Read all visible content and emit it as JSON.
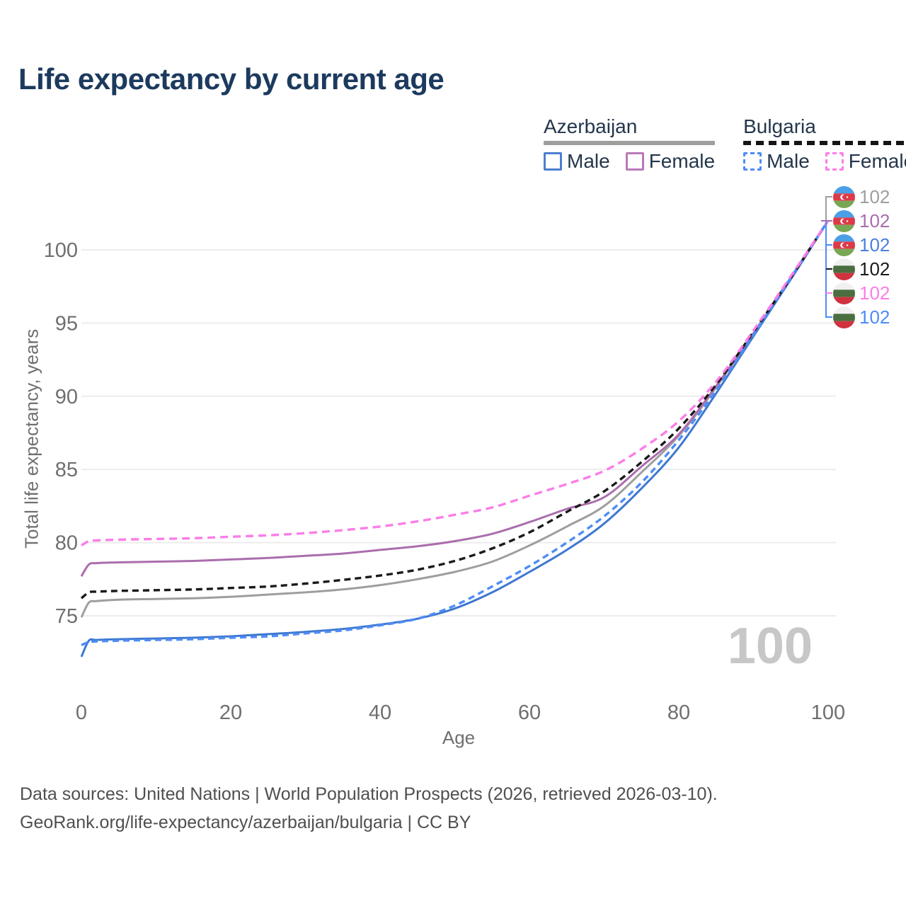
{
  "title": "Life expectancy by current age",
  "legend": {
    "groups": [
      {
        "label": "Azerbaijan",
        "line_style": "solid",
        "line_color": "#9e9e9e"
      },
      {
        "label": "Bulgaria",
        "line_style": "dashed",
        "line_color": "#151515"
      }
    ],
    "items": [
      {
        "country": "Azerbaijan",
        "label": "Male",
        "style": "solid",
        "color": "#4b7fd0"
      },
      {
        "country": "Azerbaijan",
        "label": "Female",
        "style": "solid",
        "color": "#b87ab8"
      },
      {
        "country": "Bulgaria",
        "label": "Male",
        "style": "dashed",
        "color": "#4e8cf7"
      },
      {
        "country": "Bulgaria",
        "label": "Female",
        "style": "dashed",
        "color": "#fb7de8"
      }
    ]
  },
  "chart_data": {
    "type": "line",
    "title": "Life expectancy by current age",
    "xlabel": "Age",
    "ylabel": "Total life expectancy, years",
    "xlim": [
      0,
      100
    ],
    "ylim": [
      72,
      103
    ],
    "x_ticks": [
      0,
      20,
      40,
      60,
      80,
      100
    ],
    "y_ticks": [
      75,
      80,
      85,
      90,
      95,
      100
    ],
    "grid": "horizontal-only",
    "legend_position": "top-right",
    "x": [
      0,
      1,
      2,
      5,
      10,
      15,
      20,
      25,
      30,
      35,
      40,
      45,
      50,
      55,
      60,
      65,
      70,
      75,
      80,
      85,
      90,
      95,
      100
    ],
    "series": [
      {
        "name": "Azerbaijan Both sexes",
        "country": "Azerbaijan",
        "sex": "both",
        "color": "#9e9e9e",
        "dash": "",
        "end_value": 102,
        "values": [
          74.9,
          75.9,
          76.0,
          76.1,
          76.15,
          76.2,
          76.3,
          76.45,
          76.6,
          76.8,
          77.1,
          77.5,
          78.0,
          78.7,
          79.8,
          81.1,
          82.5,
          84.8,
          87.3,
          90.6,
          94.3,
          98.1,
          102
        ]
      },
      {
        "name": "Azerbaijan Female",
        "country": "Azerbaijan",
        "sex": "female",
        "color": "#ab6dad",
        "dash": "",
        "end_value": 102,
        "values": [
          77.7,
          78.5,
          78.6,
          78.65,
          78.7,
          78.75,
          78.85,
          78.95,
          79.1,
          79.25,
          79.5,
          79.75,
          80.1,
          80.6,
          81.4,
          82.3,
          83.1,
          85.2,
          87.4,
          90.7,
          94.3,
          98.0,
          102
        ]
      },
      {
        "name": "Azerbaijan Male",
        "country": "Azerbaijan",
        "sex": "male",
        "color": "#3e78cf",
        "dash": "",
        "end_value": 102,
        "values": [
          72.2,
          73.3,
          73.35,
          73.4,
          73.45,
          73.5,
          73.6,
          73.75,
          73.9,
          74.1,
          74.4,
          74.8,
          75.5,
          76.6,
          78.0,
          79.5,
          81.3,
          83.7,
          86.5,
          90.2,
          94.1,
          98.0,
          102
        ]
      },
      {
        "name": "Bulgaria Both sexes",
        "country": "Bulgaria",
        "sex": "both",
        "color": "#1a1a1a",
        "dash": "9 6",
        "end_value": 102,
        "values": [
          76.2,
          76.6,
          76.65,
          76.7,
          76.75,
          76.8,
          76.9,
          77.0,
          77.2,
          77.45,
          77.75,
          78.15,
          78.75,
          79.6,
          80.7,
          82.1,
          83.5,
          85.5,
          87.8,
          90.8,
          94.4,
          98.1,
          102
        ]
      },
      {
        "name": "Bulgaria Male",
        "country": "Bulgaria",
        "sex": "male",
        "color": "#4e8cf7",
        "dash": "9 6",
        "end_value": 102,
        "values": [
          73.0,
          73.2,
          73.25,
          73.3,
          73.35,
          73.4,
          73.5,
          73.6,
          73.8,
          74.0,
          74.35,
          74.8,
          75.7,
          77.0,
          78.4,
          80.0,
          81.8,
          84.1,
          87.0,
          90.4,
          94.2,
          98.1,
          102
        ]
      },
      {
        "name": "Bulgaria Female",
        "country": "Bulgaria",
        "sex": "female",
        "color": "#fb7de8",
        "dash": "11 7",
        "end_value": 102,
        "values": [
          79.8,
          80.1,
          80.15,
          80.2,
          80.25,
          80.3,
          80.4,
          80.5,
          80.65,
          80.85,
          81.1,
          81.45,
          81.9,
          82.4,
          83.2,
          84.0,
          84.9,
          86.4,
          88.3,
          91.0,
          94.5,
          98.2,
          102
        ]
      }
    ]
  },
  "end_labels": [
    {
      "country": "Azerbaijan",
      "value": "102",
      "color": "#9e9e9e"
    },
    {
      "country": "Azerbaijan",
      "value": "102",
      "color": "#ab6dad"
    },
    {
      "country": "Azerbaijan",
      "value": "102",
      "color": "#4b7fe0"
    },
    {
      "country": "Bulgaria",
      "value": "102",
      "color": "#1a1a1a"
    },
    {
      "country": "Bulgaria",
      "value": "102",
      "color": "#fb7de8"
    },
    {
      "country": "Bulgaria",
      "value": "102",
      "color": "#4e8cf7"
    }
  ],
  "age_indicator": {
    "value": "100"
  },
  "footer": {
    "line1": "Data sources: United Nations | World Population Prospects (2026, retrieved 2026-03-10).",
    "line2": "GeoRank.org/life-expectancy/azerbaijan/bulgaria | CC BY"
  }
}
